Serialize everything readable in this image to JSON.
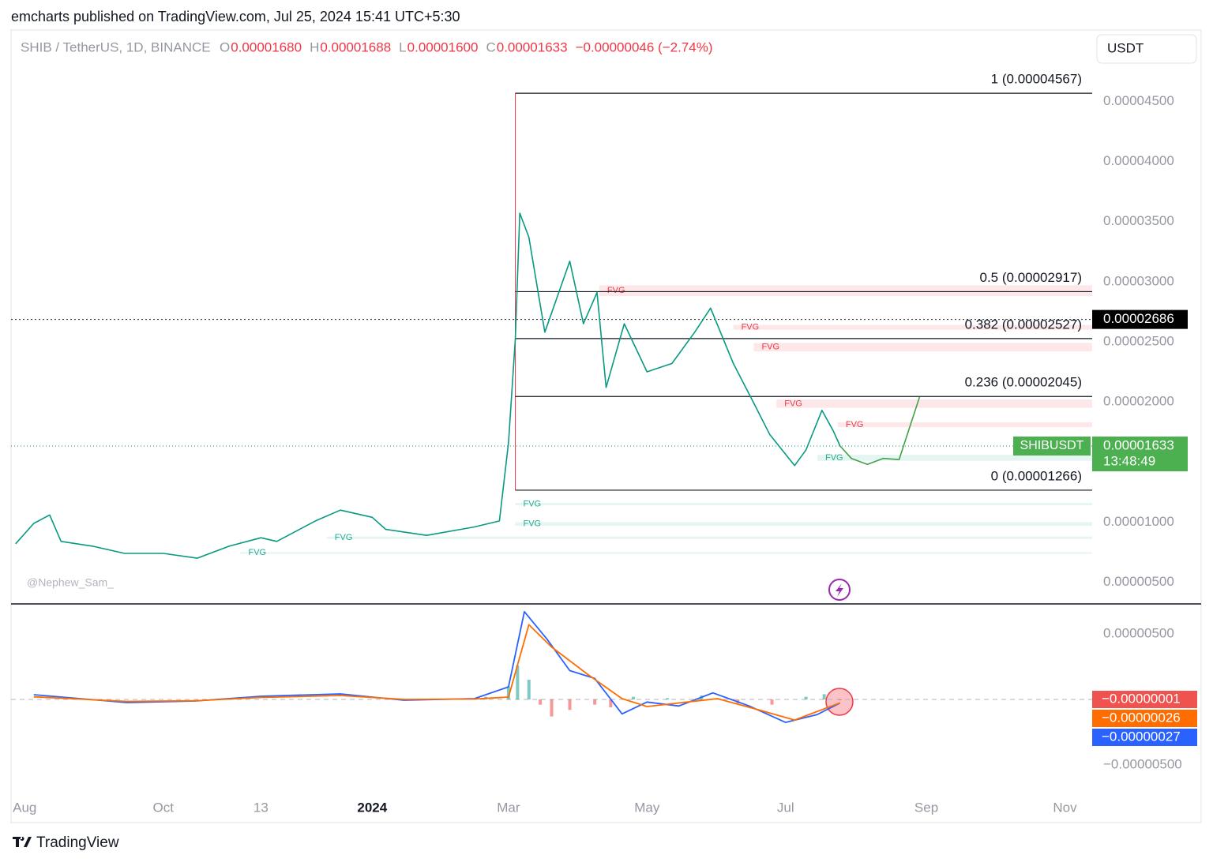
{
  "header": {
    "publisher": "emcharts published on TradingView.com, Jul 25, 2024 15:41 UTC+5:30",
    "symbol": "SHIB / TetherUS, 1D, BINANCE",
    "ohlc": [
      {
        "key": "O",
        "value": "0.00001680"
      },
      {
        "key": "H",
        "value": "0.00001688"
      },
      {
        "key": "L",
        "value": "0.00001600"
      },
      {
        "key": "C",
        "value": "0.00001633"
      }
    ],
    "change": "−0.00000046 (−2.74%)",
    "currency": "USDT",
    "watermark": "@Nephew_Sam_",
    "brand": "TradingView"
  },
  "chart_data": [
    {
      "type": "line",
      "xlim": [
        "2023-07-26",
        "2024-11-13"
      ],
      "ylim": [
        3.2e-06,
        5.08e-05
      ],
      "yticks": [
        {
          "value": 4.5e-05,
          "label": "0.00004500"
        },
        {
          "value": 4e-05,
          "label": "0.00004000"
        },
        {
          "value": 3.5e-05,
          "label": "0.00003500"
        },
        {
          "value": 3e-05,
          "label": "0.00003000"
        },
        {
          "value": 2.5e-05,
          "label": "0.00002500"
        },
        {
          "value": 2e-05,
          "label": "0.00002000"
        },
        {
          "value": 1e-05,
          "label": "0.00001000"
        },
        {
          "value": 5e-06,
          "label": "0.00000500"
        }
      ],
      "xticks": [
        {
          "value": "2023-08-01",
          "label": "Aug"
        },
        {
          "value": "2023-10-01",
          "label": "Oct"
        },
        {
          "value": "2023-11-13",
          "label": "13"
        },
        {
          "value": "2024-01-01",
          "label": "2024"
        },
        {
          "value": "2024-03-01",
          "label": "Mar"
        },
        {
          "value": "2024-05-01",
          "label": "May"
        },
        {
          "value": "2024-07-01",
          "label": "Jul"
        },
        {
          "value": "2024-09-01",
          "label": "Sep"
        },
        {
          "value": "2024-11-01",
          "label": "Nov"
        }
      ],
      "series": [
        {
          "name": "SHIBUSDT",
          "color": "#089981",
          "x": [
            "2023-07-28",
            "2023-08-05",
            "2023-08-12",
            "2023-08-17",
            "2023-08-31",
            "2023-09-14",
            "2023-10-01",
            "2023-10-16",
            "2023-10-30",
            "2023-11-13",
            "2023-11-20",
            "2023-12-07",
            "2023-12-18",
            "2024-01-01",
            "2024-01-07",
            "2024-01-25",
            "2024-02-15",
            "2024-02-26",
            "2024-03-01",
            "2024-03-04",
            "2024-03-06",
            "2024-03-10",
            "2024-03-17",
            "2024-03-28",
            "2024-04-03",
            "2024-04-09",
            "2024-04-13",
            "2024-04-21",
            "2024-05-01",
            "2024-05-12",
            "2024-05-22",
            "2024-05-29",
            "2024-06-08",
            "2024-06-17",
            "2024-06-24",
            "2024-07-05",
            "2024-07-10",
            "2024-07-17",
            "2024-07-22",
            "2024-07-25"
          ],
          "values": [
            8.2e-06,
            9.9e-06,
            1.06e-05,
            8.4e-06,
            8e-06,
            7.4e-06,
            7.4e-06,
            7e-06,
            8e-06,
            8.7e-06,
            8.4e-06,
            1.01e-05,
            1.1e-05,
            1.04e-05,
            9.4e-06,
            8.9e-06,
            9.6e-06,
            1.01e-05,
            1.66e-05,
            2.52e-05,
            3.57e-05,
            3.37e-05,
            2.58e-05,
            3.17e-05,
            2.65e-05,
            2.91e-05,
            2.12e-05,
            2.65e-05,
            2.25e-05,
            2.32e-05,
            2.58e-05,
            2.78e-05,
            2.32e-05,
            1.99e-05,
            1.73e-05,
            1.47e-05,
            1.6e-05,
            1.93e-05,
            1.76e-05,
            1.633e-05
          ]
        }
      ],
      "projection": {
        "color": "#43a047",
        "x": [
          "2024-07-25",
          "2024-07-30",
          "2024-08-06",
          "2024-08-13",
          "2024-08-20",
          "2024-08-29"
        ],
        "values": [
          1.633e-05,
          1.53e-05,
          1.48e-05,
          1.53e-05,
          1.52e-05,
          2.04e-05
        ]
      },
      "fib_levels": [
        {
          "value": 4.567e-05,
          "label": "1 (0.00004567)"
        },
        {
          "value": 2.917e-05,
          "label": "0.5 (0.00002917)"
        },
        {
          "value": 2.527e-05,
          "label": "0.382 (0.00002527)"
        },
        {
          "value": 2.045e-05,
          "label": "0.236 (0.00002045)"
        },
        {
          "value": 1.266e-05,
          "label": "0 (0.00001266)"
        }
      ],
      "fib_start": "2024-03-04",
      "fvg_zones": [
        {
          "label": "FVG",
          "color": "#f23645",
          "start": "2024-04-10",
          "low": 2.88e-05,
          "high": 2.97e-05
        },
        {
          "label": "FVG",
          "color": "#f23645",
          "start": "2024-06-08",
          "low": 2.6e-05,
          "high": 2.64e-05
        },
        {
          "label": "FVG",
          "color": "#f23645",
          "start": "2024-06-17",
          "low": 2.42e-05,
          "high": 2.49e-05
        },
        {
          "label": "FVG",
          "color": "#f23645",
          "start": "2024-06-27",
          "low": 1.95e-05,
          "high": 2.02e-05
        },
        {
          "label": "FVG",
          "color": "#f23645",
          "start": "2024-07-24",
          "low": 1.79e-05,
          "high": 1.83e-05
        },
        {
          "label": "FVG",
          "color": "#22ab94",
          "start": "2024-07-15",
          "low": 1.51e-05,
          "high": 1.56e-05
        },
        {
          "label": "FVG",
          "color": "#22ab94",
          "start": "2024-03-04",
          "low": 1.14e-05,
          "high": 1.16e-05
        },
        {
          "label": "FVG",
          "color": "#22ab94",
          "start": "2024-03-04",
          "low": 9.7e-06,
          "high": 1e-05
        },
        {
          "label": "FVG",
          "color": "#22ab94",
          "start": "2023-12-12",
          "low": 8.6e-06,
          "high": 8.8e-06
        },
        {
          "label": "FVG",
          "color": "#22ab94",
          "start": "2023-11-04",
          "low": 7.4e-06,
          "high": 7.5e-06
        }
      ],
      "last_price": {
        "value": 1.633e-05,
        "label": "0.00001633",
        "countdown": "13:48:49"
      },
      "marker_line": {
        "value": 2.686e-05,
        "label": "0.00002686"
      }
    },
    {
      "type": "line",
      "ylim": [
        -7.47e-06,
        7.29e-06
      ],
      "yticks": [
        {
          "value": 5e-06,
          "label": "0.00000500"
        },
        {
          "value": -5e-06,
          "label": "−0.00000500"
        }
      ],
      "series": [
        {
          "color": "#2962ff",
          "x": [
            "2023-08-05",
            "2023-09-15",
            "2023-10-15",
            "2023-11-13",
            "2023-12-18",
            "2024-01-15",
            "2024-02-15",
            "2024-03-01",
            "2024-03-08",
            "2024-03-18",
            "2024-03-28",
            "2024-04-08",
            "2024-04-20",
            "2024-05-01",
            "2024-05-15",
            "2024-05-30",
            "2024-06-15",
            "2024-07-01",
            "2024-07-15",
            "2024-07-25"
          ],
          "values": [
            3.6e-07,
            -2.4e-07,
            -1.2e-07,
            2.4e-07,
            4.2e-07,
            -6e-08,
            6e-08,
            9.6e-07,
            6.7e-06,
            4.6e-06,
            2.2e-06,
            1.6e-06,
            -1.1e-06,
            -2e-07,
            -5e-07,
            5e-07,
            -5e-07,
            -1.75e-06,
            -1.15e-06,
            -2.7e-07
          ],
          "last": {
            "value": -2.7e-07,
            "label": "−0.00000027"
          }
        },
        {
          "color": "#ff6d00",
          "x": [
            "2023-08-05",
            "2023-09-15",
            "2023-10-15",
            "2023-11-13",
            "2023-12-18",
            "2024-01-15",
            "2024-02-15",
            "2024-03-01",
            "2024-03-10",
            "2024-03-20",
            "2024-04-05",
            "2024-04-20",
            "2024-05-01",
            "2024-06-01",
            "2024-06-20",
            "2024-07-05",
            "2024-07-25"
          ],
          "values": [
            2e-07,
            -1.5e-07,
            -1e-07,
            1.5e-07,
            3e-07,
            0,
            3e-08,
            1.8e-07,
            5.7e-06,
            4e-06,
            1.9e-06,
            6e-08,
            -5.4e-07,
            6e-08,
            -8.4e-07,
            -1.57e-06,
            -2.6e-07
          ],
          "last": {
            "value": -2.6e-07,
            "label": "−0.00000026"
          }
        }
      ],
      "histogram": {
        "up_color": "#26a69a",
        "down_color": "#ef5350",
        "x": [
          "2024-02-20",
          "2024-03-01",
          "2024-03-05",
          "2024-03-10",
          "2024-03-15",
          "2024-03-20",
          "2024-03-28",
          "2024-04-08",
          "2024-04-15",
          "2024-04-25",
          "2024-05-10",
          "2024-05-25",
          "2024-06-10",
          "2024-06-25",
          "2024-07-10",
          "2024-07-18",
          "2024-07-25"
        ],
        "values": [
          2e-07,
          1e-06,
          2.6e-06,
          1.5e-06,
          -4e-07,
          -1.3e-06,
          -8e-07,
          -4e-07,
          -6e-07,
          2e-07,
          1e-07,
          3e-07,
          -3e-07,
          -4e-07,
          2e-07,
          4e-07,
          -1e-08
        ],
        "last": {
          "value": -1e-08,
          "label": "−0.00000001"
        }
      }
    }
  ]
}
